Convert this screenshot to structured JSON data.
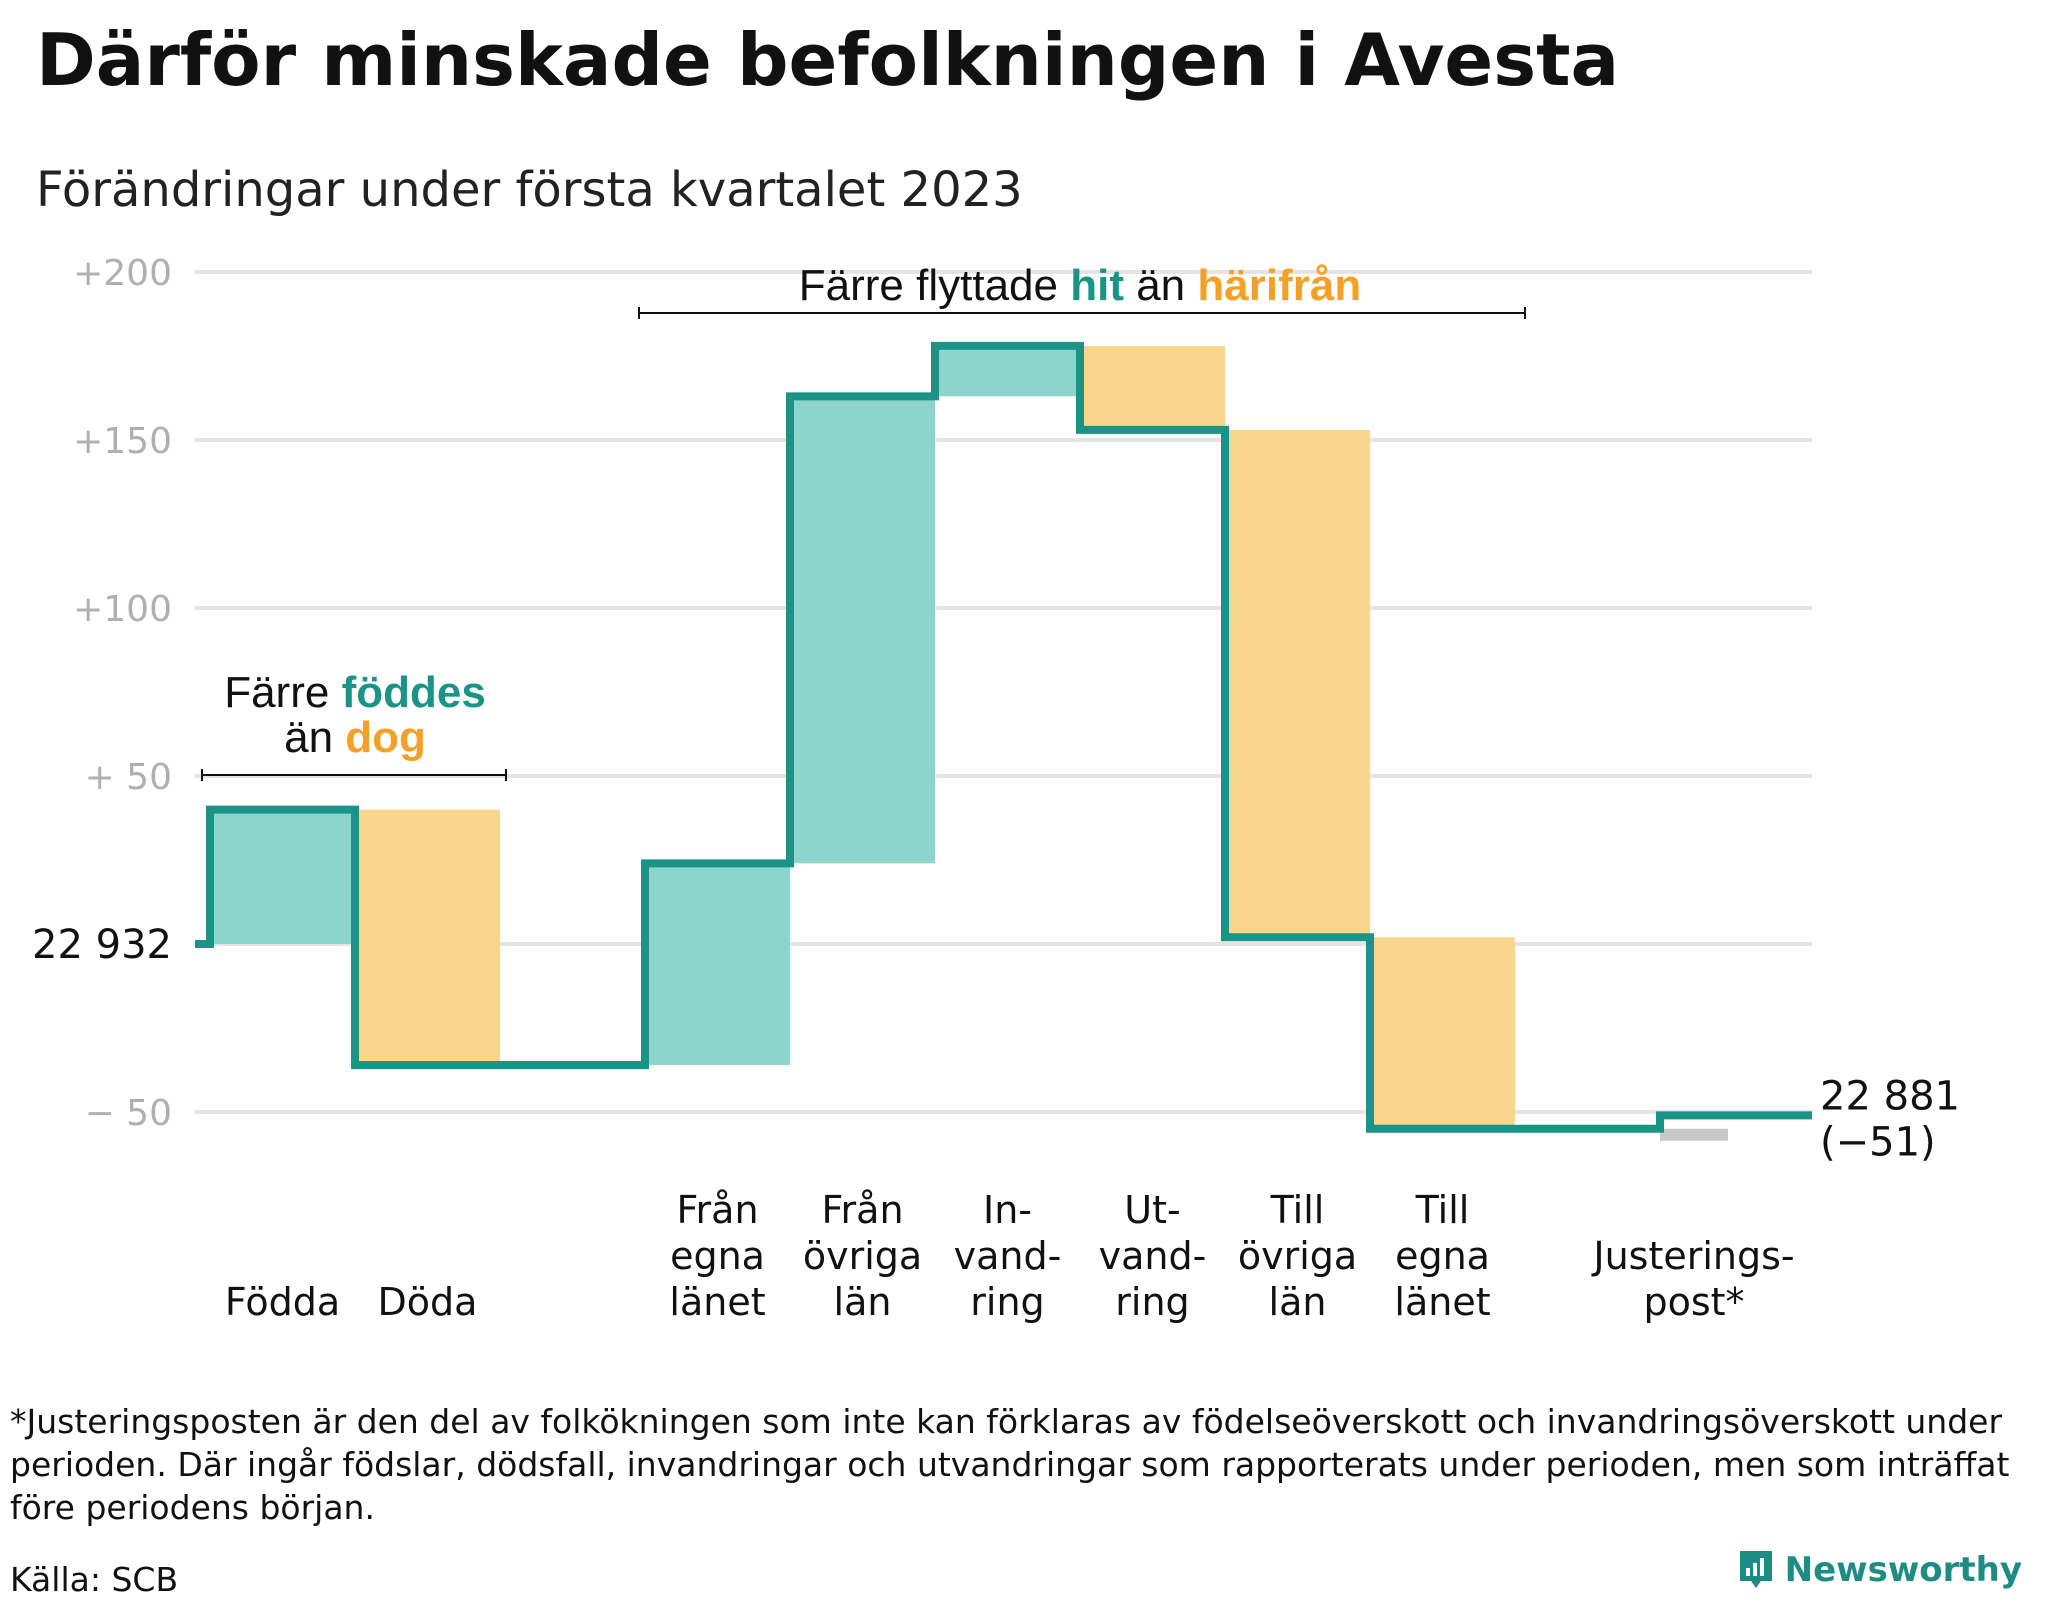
{
  "title": "Därför minskade befolkningen i Avesta",
  "subtitle": "Förändringar under första kvartalet 2023",
  "colors": {
    "increase": "#8dd5cc",
    "decrease": "#fad58d",
    "adjustment": "#c8c8c8",
    "line": "#1a9486",
    "grid": "#e4e4e4",
    "teal_text": "#1a9486",
    "orange_text": "#f5a128"
  },
  "chart_data": {
    "type": "waterfall",
    "start_label": "22 932",
    "start_value": 22932,
    "end_label_line1": "22 881",
    "end_label_line2": "(−51)",
    "end_value": 22881,
    "y_ticks": [
      "+200",
      "+150",
      "+100",
      "+ 50",
      "− 50"
    ],
    "y_tick_values": [
      200,
      150,
      100,
      50,
      -50
    ],
    "ylim": [
      -60,
      210
    ],
    "steps": [
      {
        "lines": [
          "Födda"
        ],
        "change": 40,
        "kind": "increase"
      },
      {
        "lines": [
          "Döda"
        ],
        "change": -76,
        "kind": "decrease"
      },
      {
        "lines": [
          "Från",
          "egna",
          "länet"
        ],
        "change": 60,
        "kind": "increase"
      },
      {
        "lines": [
          "Från",
          "övriga",
          "län"
        ],
        "change": 139,
        "kind": "increase"
      },
      {
        "lines": [
          "In-",
          "vand-",
          "ring"
        ],
        "change": 15,
        "kind": "increase"
      },
      {
        "lines": [
          "Ut-",
          "vand-",
          "ring"
        ],
        "change": -25,
        "kind": "decrease"
      },
      {
        "lines": [
          "Till",
          "övriga",
          "län"
        ],
        "change": -151,
        "kind": "decrease"
      },
      {
        "lines": [
          "Till",
          "egna",
          "länet"
        ],
        "change": -57,
        "kind": "decrease"
      },
      {
        "lines": [
          "Justerings-",
          "post*"
        ],
        "change": 4,
        "kind": "adjustment"
      }
    ],
    "annotations": [
      {
        "parts": [
          {
            "text": "Färre ",
            "style": "plain"
          },
          {
            "text": "föddes",
            "style": "teal"
          }
        ],
        "line2": [
          {
            "text": "än ",
            "style": "plain"
          },
          {
            "text": "dog",
            "style": "orange"
          }
        ]
      },
      {
        "parts": [
          {
            "text": "Färre flyttade ",
            "style": "plain"
          },
          {
            "text": "hit",
            "style": "teal"
          },
          {
            "text": " än ",
            "style": "plain"
          },
          {
            "text": "härifrån",
            "style": "orange"
          }
        ]
      }
    ]
  },
  "footnote": "*Justeringsposten är den del av folkökningen som inte kan förklaras av födelseöverskott och invandringsöverskott under perioden. Där ingår födslar, dödsfall, invandringar och utvandringar som rapporterats under perioden, men som inträffat före periodens början.",
  "source": "Källa: SCB",
  "brand": {
    "name": "Newsworthy",
    "icon": "newsworthy-logo-icon"
  }
}
